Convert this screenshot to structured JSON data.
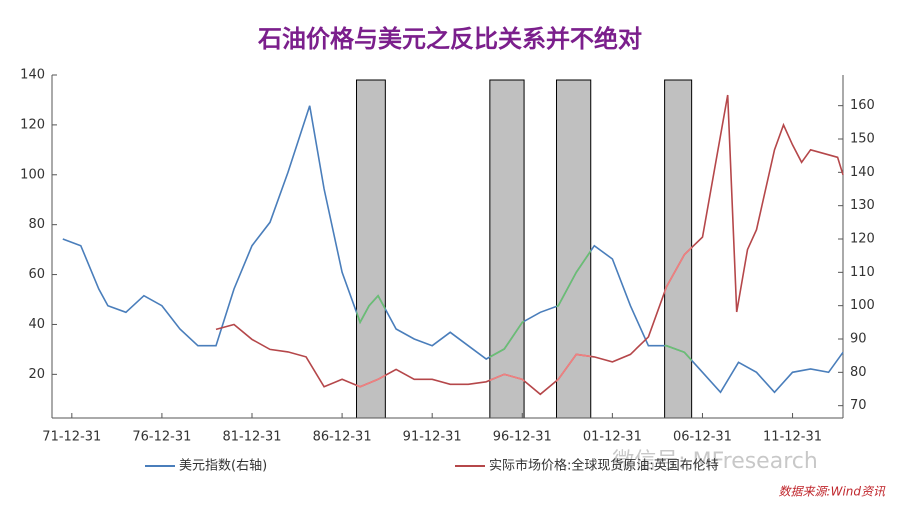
{
  "chart_data": {
    "type": "line",
    "title": "石油价格与美元之反比关系并不绝对",
    "source": "数据来源:Wind资讯",
    "watermark": "微信号: MFresearch",
    "xlim": [
      1970.9,
      2014.8
    ],
    "xticks": [
      {
        "value": 1972,
        "label": "71-12-31"
      },
      {
        "value": 1977,
        "label": "76-12-31"
      },
      {
        "value": 1982,
        "label": "81-12-31"
      },
      {
        "value": 1987,
        "label": "86-12-31"
      },
      {
        "value": 1992,
        "label": "91-12-31"
      },
      {
        "value": 1997,
        "label": "96-12-31"
      },
      {
        "value": 2002,
        "label": "01-12-31"
      },
      {
        "value": 2007,
        "label": "06-12-31"
      },
      {
        "value": 2012,
        "label": "11-12-31"
      }
    ],
    "ylim": [
      2.5,
      140
    ],
    "yticks": [
      20,
      40,
      60,
      80,
      100,
      120,
      140
    ],
    "y2lim": [
      66.3,
      169.2
    ],
    "y2ticks": [
      70,
      80,
      90,
      100,
      110,
      120,
      130,
      140,
      150,
      160
    ],
    "shaded_periods": [
      [
        1987.8,
        1989.4
      ],
      [
        1995.2,
        1997.1
      ],
      [
        1998.9,
        2000.8
      ],
      [
        2004.9,
        2006.4
      ]
    ],
    "shade_color": "#c0c0c0",
    "series": [
      {
        "name": "美元指数(右轴)",
        "color": "#4a7ebb",
        "highlight_color": "#6cc070",
        "axis": "y2",
        "x": [
          1971.5,
          1972.5,
          1973.5,
          1974,
          1975,
          1976,
          1977,
          1978,
          1979,
          1980,
          1981,
          1982,
          1983,
          1984,
          1985.2,
          1986,
          1987,
          1988,
          1988.5,
          1989,
          1990,
          1991,
          1992,
          1993,
          1994,
          1995,
          1996,
          1997,
          1998,
          1999,
          2000,
          2001,
          2002,
          2003,
          2004,
          2005,
          2006,
          2007,
          2008,
          2009,
          2010,
          2011,
          2012,
          2013,
          2014,
          2014.8
        ],
        "values": [
          120,
          118,
          105,
          100,
          98,
          103,
          100,
          93,
          88,
          88,
          105,
          118,
          125,
          140,
          160,
          135,
          110,
          95,
          100,
          103,
          93,
          90,
          88,
          92,
          88,
          84,
          87,
          95,
          98,
          100,
          110,
          118,
          114,
          100,
          88,
          88,
          86,
          80,
          74,
          83,
          80,
          74,
          80,
          81,
          80,
          86
        ]
      },
      {
        "name": "实际市场价格:全球现货原油:英国布伦特",
        "color": "#b5474a",
        "highlight_color": "#f08080",
        "x": [
          1980,
          1981,
          1982,
          1983,
          1984,
          1985,
          1986,
          1987,
          1988,
          1989,
          1990,
          1991,
          1992,
          1993,
          1994,
          1995,
          1996,
          1997,
          1998,
          1999,
          2000,
          2001,
          2002,
          2003,
          2004,
          2005,
          2006,
          2007,
          2008.4,
          2008.9,
          2009.5,
          2010,
          2011,
          2011.5,
          2012,
          2012.5,
          2013,
          2014,
          2014.5,
          2014.8
        ],
        "values": [
          38,
          40,
          34,
          30,
          29,
          27,
          15,
          18,
          15,
          18,
          22,
          18,
          18,
          16,
          16,
          17,
          20,
          18,
          12,
          18,
          28,
          27,
          25,
          28,
          35,
          55,
          68,
          75,
          132,
          45,
          70,
          78,
          110,
          120,
          112,
          105,
          110,
          108,
          107,
          100
        ]
      }
    ]
  }
}
